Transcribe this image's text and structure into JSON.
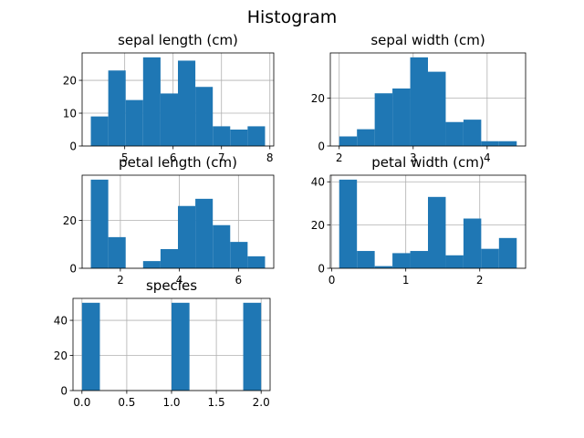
{
  "figure": {
    "title": "Histogram"
  },
  "colors": {
    "bar": "#1f77b4",
    "grid": "#b0b0b0"
  },
  "chart_data": [
    {
      "type": "bar",
      "title": "sepal length (cm)",
      "xlim": [
        4.12,
        8.08
      ],
      "ylim": [
        0,
        28.35
      ],
      "xticks": [
        5,
        6,
        7,
        8
      ],
      "yticks": [
        0,
        10,
        20
      ],
      "bin_edges": [
        4.3,
        4.66,
        5.02,
        5.38,
        5.74,
        6.1,
        6.46,
        6.82,
        7.18,
        7.54,
        7.9
      ],
      "values": [
        9,
        23,
        14,
        27,
        16,
        26,
        18,
        6,
        5,
        6
      ],
      "grid": true
    },
    {
      "type": "bar",
      "title": "sepal width (cm)",
      "xlim": [
        1.88,
        4.52
      ],
      "ylim": [
        0,
        38.85
      ],
      "xticks": [
        2,
        3,
        4
      ],
      "yticks": [
        0,
        20
      ],
      "bin_edges": [
        2.0,
        2.24,
        2.48,
        2.72,
        2.96,
        3.2,
        3.44,
        3.68,
        3.92,
        4.16,
        4.4
      ],
      "values": [
        4,
        7,
        22,
        24,
        37,
        31,
        10,
        11,
        2,
        2
      ],
      "grid": true
    },
    {
      "type": "bar",
      "title": "petal length (cm)",
      "xlim": [
        0.705,
        7.195
      ],
      "ylim": [
        0,
        38.85
      ],
      "xticks": [
        2,
        4,
        6
      ],
      "yticks": [
        0,
        20
      ],
      "bin_edges": [
        1.0,
        1.59,
        2.18,
        2.77,
        3.36,
        3.95,
        4.54,
        5.13,
        5.72,
        6.31,
        6.9
      ],
      "values": [
        37,
        13,
        0,
        3,
        8,
        26,
        29,
        18,
        11,
        5
      ],
      "grid": true
    },
    {
      "type": "bar",
      "title": "petal width (cm)",
      "xlim": [
        -0.02,
        2.62
      ],
      "ylim": [
        0,
        43.05
      ],
      "xticks": [
        0,
        1,
        2
      ],
      "yticks": [
        0,
        20,
        40
      ],
      "bin_edges": [
        0.1,
        0.34,
        0.58,
        0.82,
        1.06,
        1.3,
        1.54,
        1.78,
        2.02,
        2.26,
        2.5
      ],
      "values": [
        41,
        8,
        1,
        7,
        8,
        33,
        6,
        23,
        9,
        14
      ],
      "grid": true
    },
    {
      "type": "bar",
      "title": "species",
      "xlim": [
        -0.1,
        2.1
      ],
      "ylim": [
        0,
        52.5
      ],
      "xticks": [
        0.0,
        0.5,
        1.0,
        1.5,
        2.0
      ],
      "xticklabels": [
        "0.0",
        "0.5",
        "1.0",
        "1.5",
        "2.0"
      ],
      "yticks": [
        0,
        20,
        40
      ],
      "bin_edges": [
        0.0,
        0.2,
        0.4,
        0.6,
        0.8,
        1.0,
        1.2,
        1.4,
        1.6,
        1.8,
        2.0
      ],
      "values": [
        50,
        0,
        0,
        0,
        0,
        50,
        0,
        0,
        0,
        50
      ],
      "grid": true
    }
  ]
}
